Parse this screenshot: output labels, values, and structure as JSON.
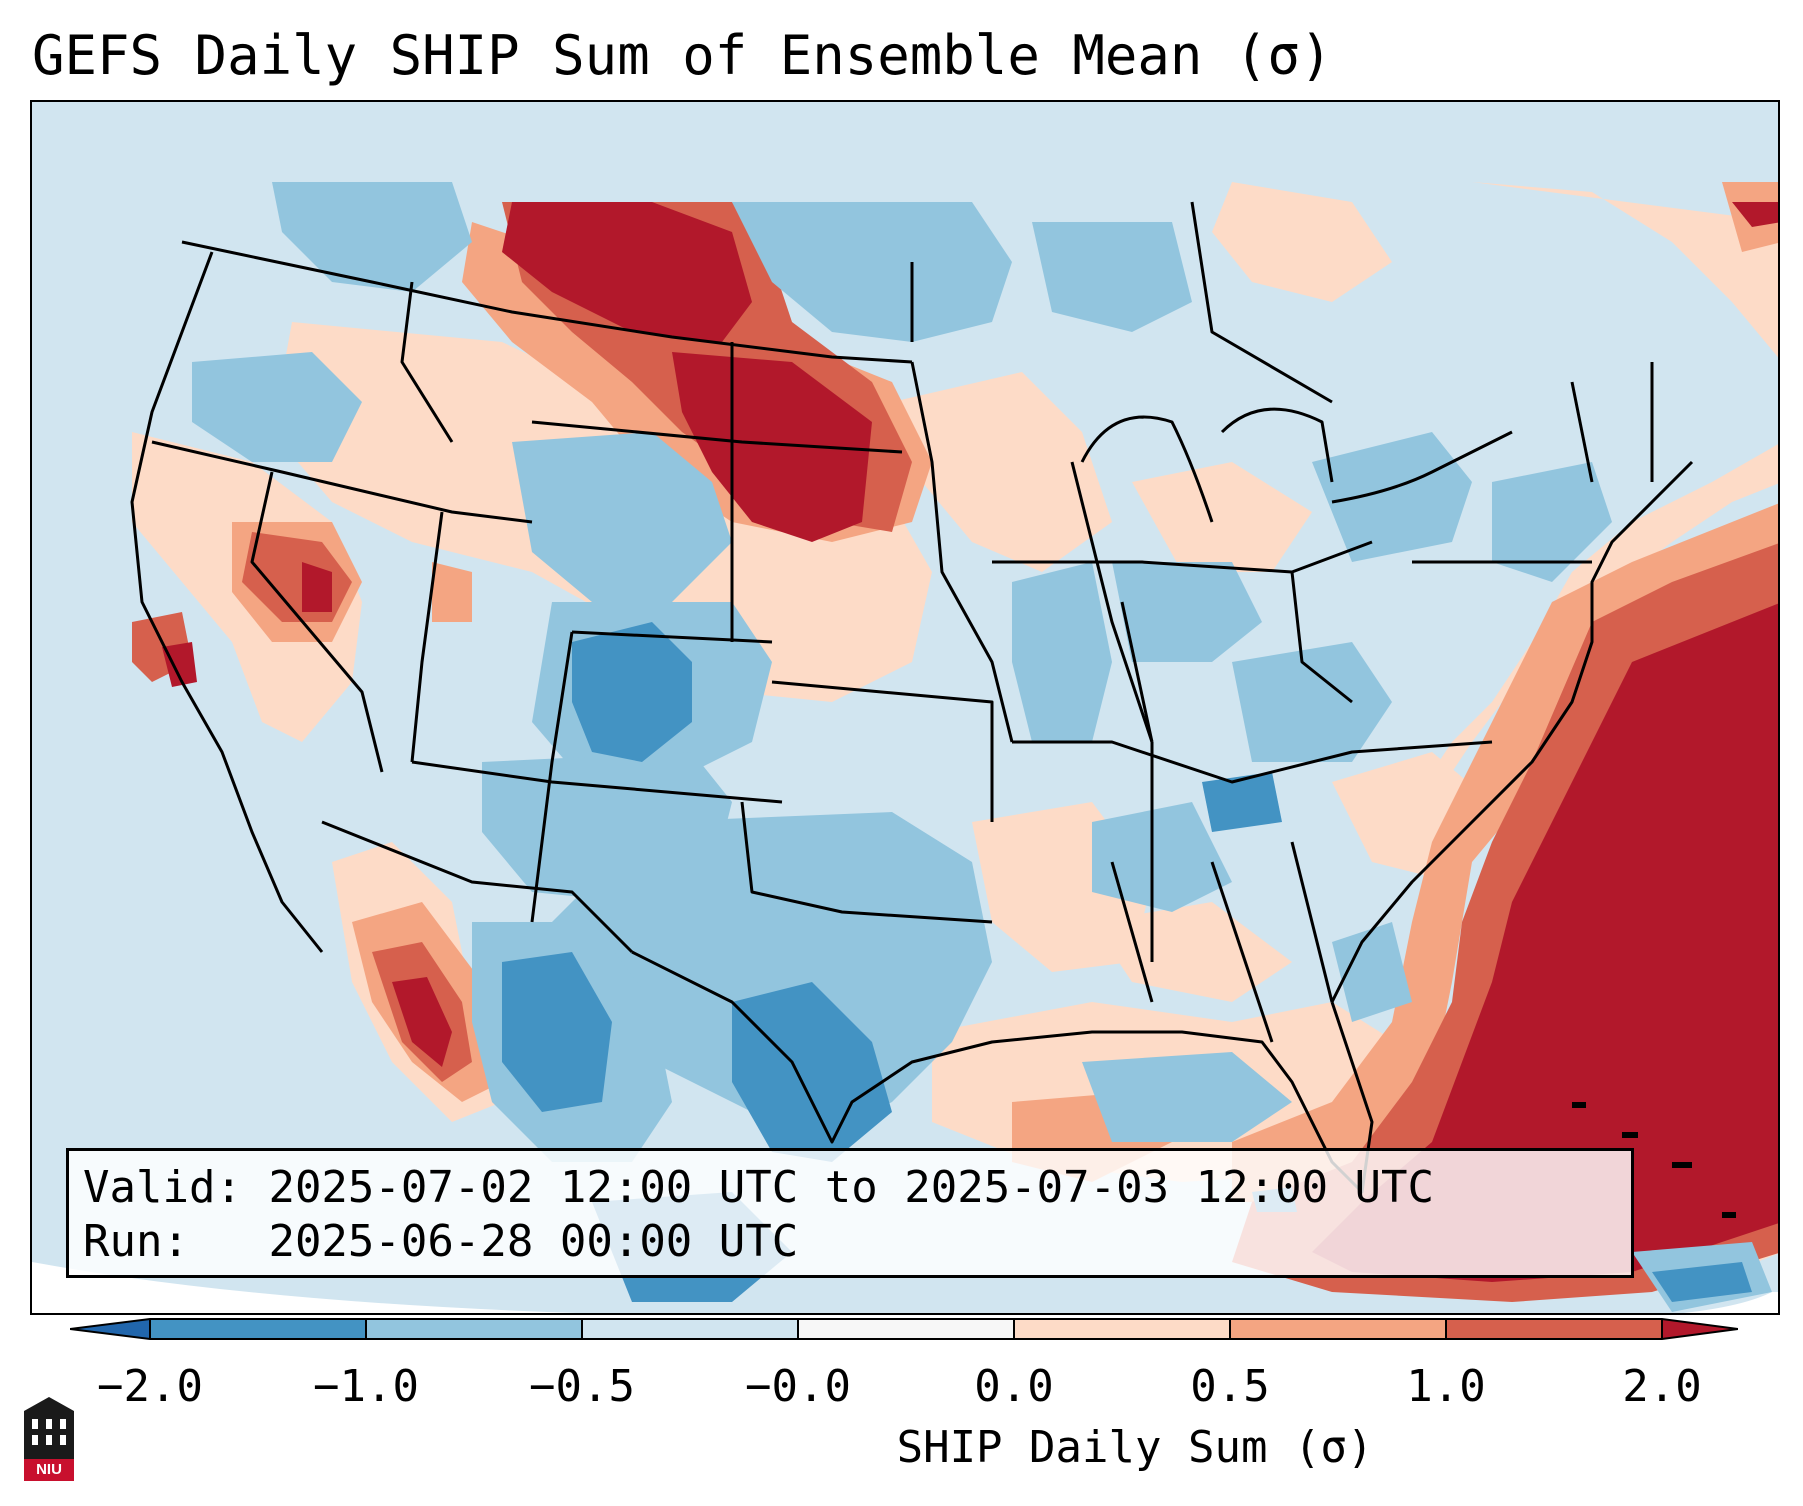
{
  "title": "GEFS Daily SHIP Sum of Ensemble Mean (σ)",
  "info": {
    "valid_label": "Valid:",
    "valid_value": "2025-07-02 12:00 UTC to 2025-07-03 12:00 UTC",
    "run_label": "Run:",
    "run_value": "2025-06-28 00:00 UTC"
  },
  "colorbar": {
    "label": "SHIP Daily Sum (σ)",
    "ticks": [
      "−2.0",
      "−1.0",
      "−0.5",
      "−0.0",
      "0.0",
      "0.5",
      "1.0",
      "2.0"
    ],
    "colors": {
      "under": "#2166ac",
      "bin_1": "#4393c3",
      "bin_2": "#92c5de",
      "bin_3": "#d1e5f0",
      "bin_4": "#f7f7f7",
      "bin_5": "#fddbc7",
      "bin_6": "#f4a582",
      "bin_7": "#d6604d",
      "over": "#b2182b"
    }
  },
  "logo": {
    "text": "NIU"
  }
}
